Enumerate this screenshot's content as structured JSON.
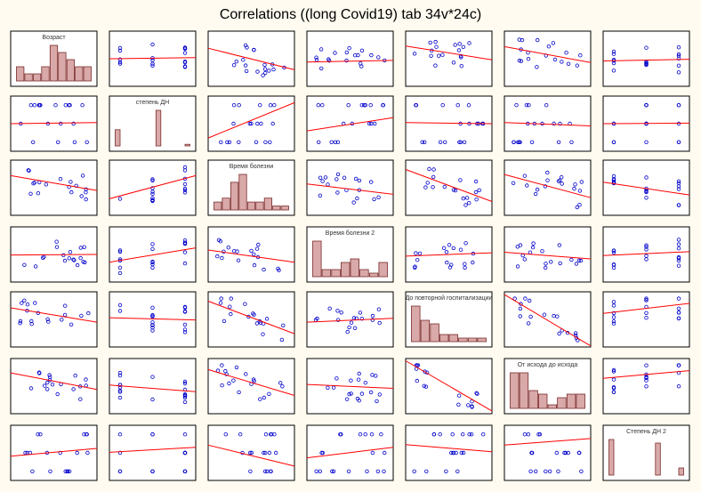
{
  "title": "Correlations ((long Covid19) tab 34v*24c)",
  "chart_data": {
    "type": "scatter-matrix",
    "title": "Correlations ((long Covid19) tab 34v*24c)",
    "variables": [
      "Возраст",
      "степень ДН",
      "Время болезни",
      "Время болезни 2",
      "До повторной госпитализации",
      "От исхода до исхода",
      "Степень ДН 2"
    ],
    "colors": {
      "points": "#0000cc",
      "fit_line": "#ff0000",
      "bars": "#d9a9a9",
      "frame": "#000000"
    },
    "histograms": [
      [
        2,
        1,
        1,
        2,
        5,
        4,
        3,
        2,
        2
      ],
      [
        10,
        0,
        0,
        0,
        0,
        0,
        0,
        22,
        0,
        0,
        0,
        0,
        1
      ],
      [
        2,
        3,
        7,
        9,
        2,
        2,
        3,
        1,
        1
      ],
      [
        10,
        2,
        2,
        4,
        5,
        2,
        1,
        4
      ],
      [
        10,
        6,
        5,
        2,
        2,
        1,
        1,
        1
      ],
      [
        10,
        10,
        5,
        4,
        1,
        3,
        4,
        4
      ],
      [
        10,
        0,
        0,
        0,
        0,
        0,
        0,
        0,
        9,
        0,
        0,
        0,
        2
      ]
    ],
    "fit_lines": [
      [
        null,
        [
          0.5,
          0.52
        ],
        [
          0.69,
          0.3
        ],
        [
          0.44,
          0.47
        ],
        [
          0.73,
          0.48
        ],
        [
          0.72,
          0.43
        ],
        [
          0.46,
          0.49
        ]
      ],
      [
        [
          0.5,
          0.52
        ],
        null,
        [
          0.24,
          0.88
        ],
        [
          0.37,
          0.61
        ],
        [
          0.52,
          0.5
        ],
        [
          0.52,
          0.46
        ],
        [
          0.5,
          0.51
        ]
      ],
      [
        [
          0.72,
          0.45
        ],
        [
          0.3,
          0.72
        ],
        null,
        [
          0.57,
          0.38
        ],
        [
          0.83,
          0.25
        ],
        [
          0.74,
          0.32
        ],
        [
          0.6,
          0.37
        ]
      ],
      [
        [
          0.49,
          0.5
        ],
        [
          0.36,
          0.62
        ],
        [
          0.58,
          0.36
        ],
        null,
        [
          0.47,
          0.53
        ],
        [
          0.54,
          0.42
        ],
        [
          0.48,
          0.55
        ]
      ],
      [
        [
          0.71,
          0.45
        ],
        [
          0.53,
          0.49
        ],
        [
          0.83,
          0.24
        ],
        [
          0.45,
          0.52
        ],
        null,
        [
          0.95,
          0.02
        ],
        [
          0.61,
          0.79
        ]
      ],
      [
        [
          0.74,
          0.44
        ],
        [
          0.52,
          0.4
        ],
        [
          0.8,
          0.33
        ],
        [
          0.53,
          0.46
        ],
        [
          0.96,
          0.05
        ],
        null,
        [
          0.64,
          0.78
        ]
      ],
      [
        [
          0.44,
          0.58
        ],
        [
          0.51,
          0.6
        ],
        [
          0.64,
          0.26
        ],
        [
          0.41,
          0.6
        ],
        [
          0.65,
          0.52
        ],
        [
          0.64,
          0.76
        ],
        null
      ]
    ]
  }
}
